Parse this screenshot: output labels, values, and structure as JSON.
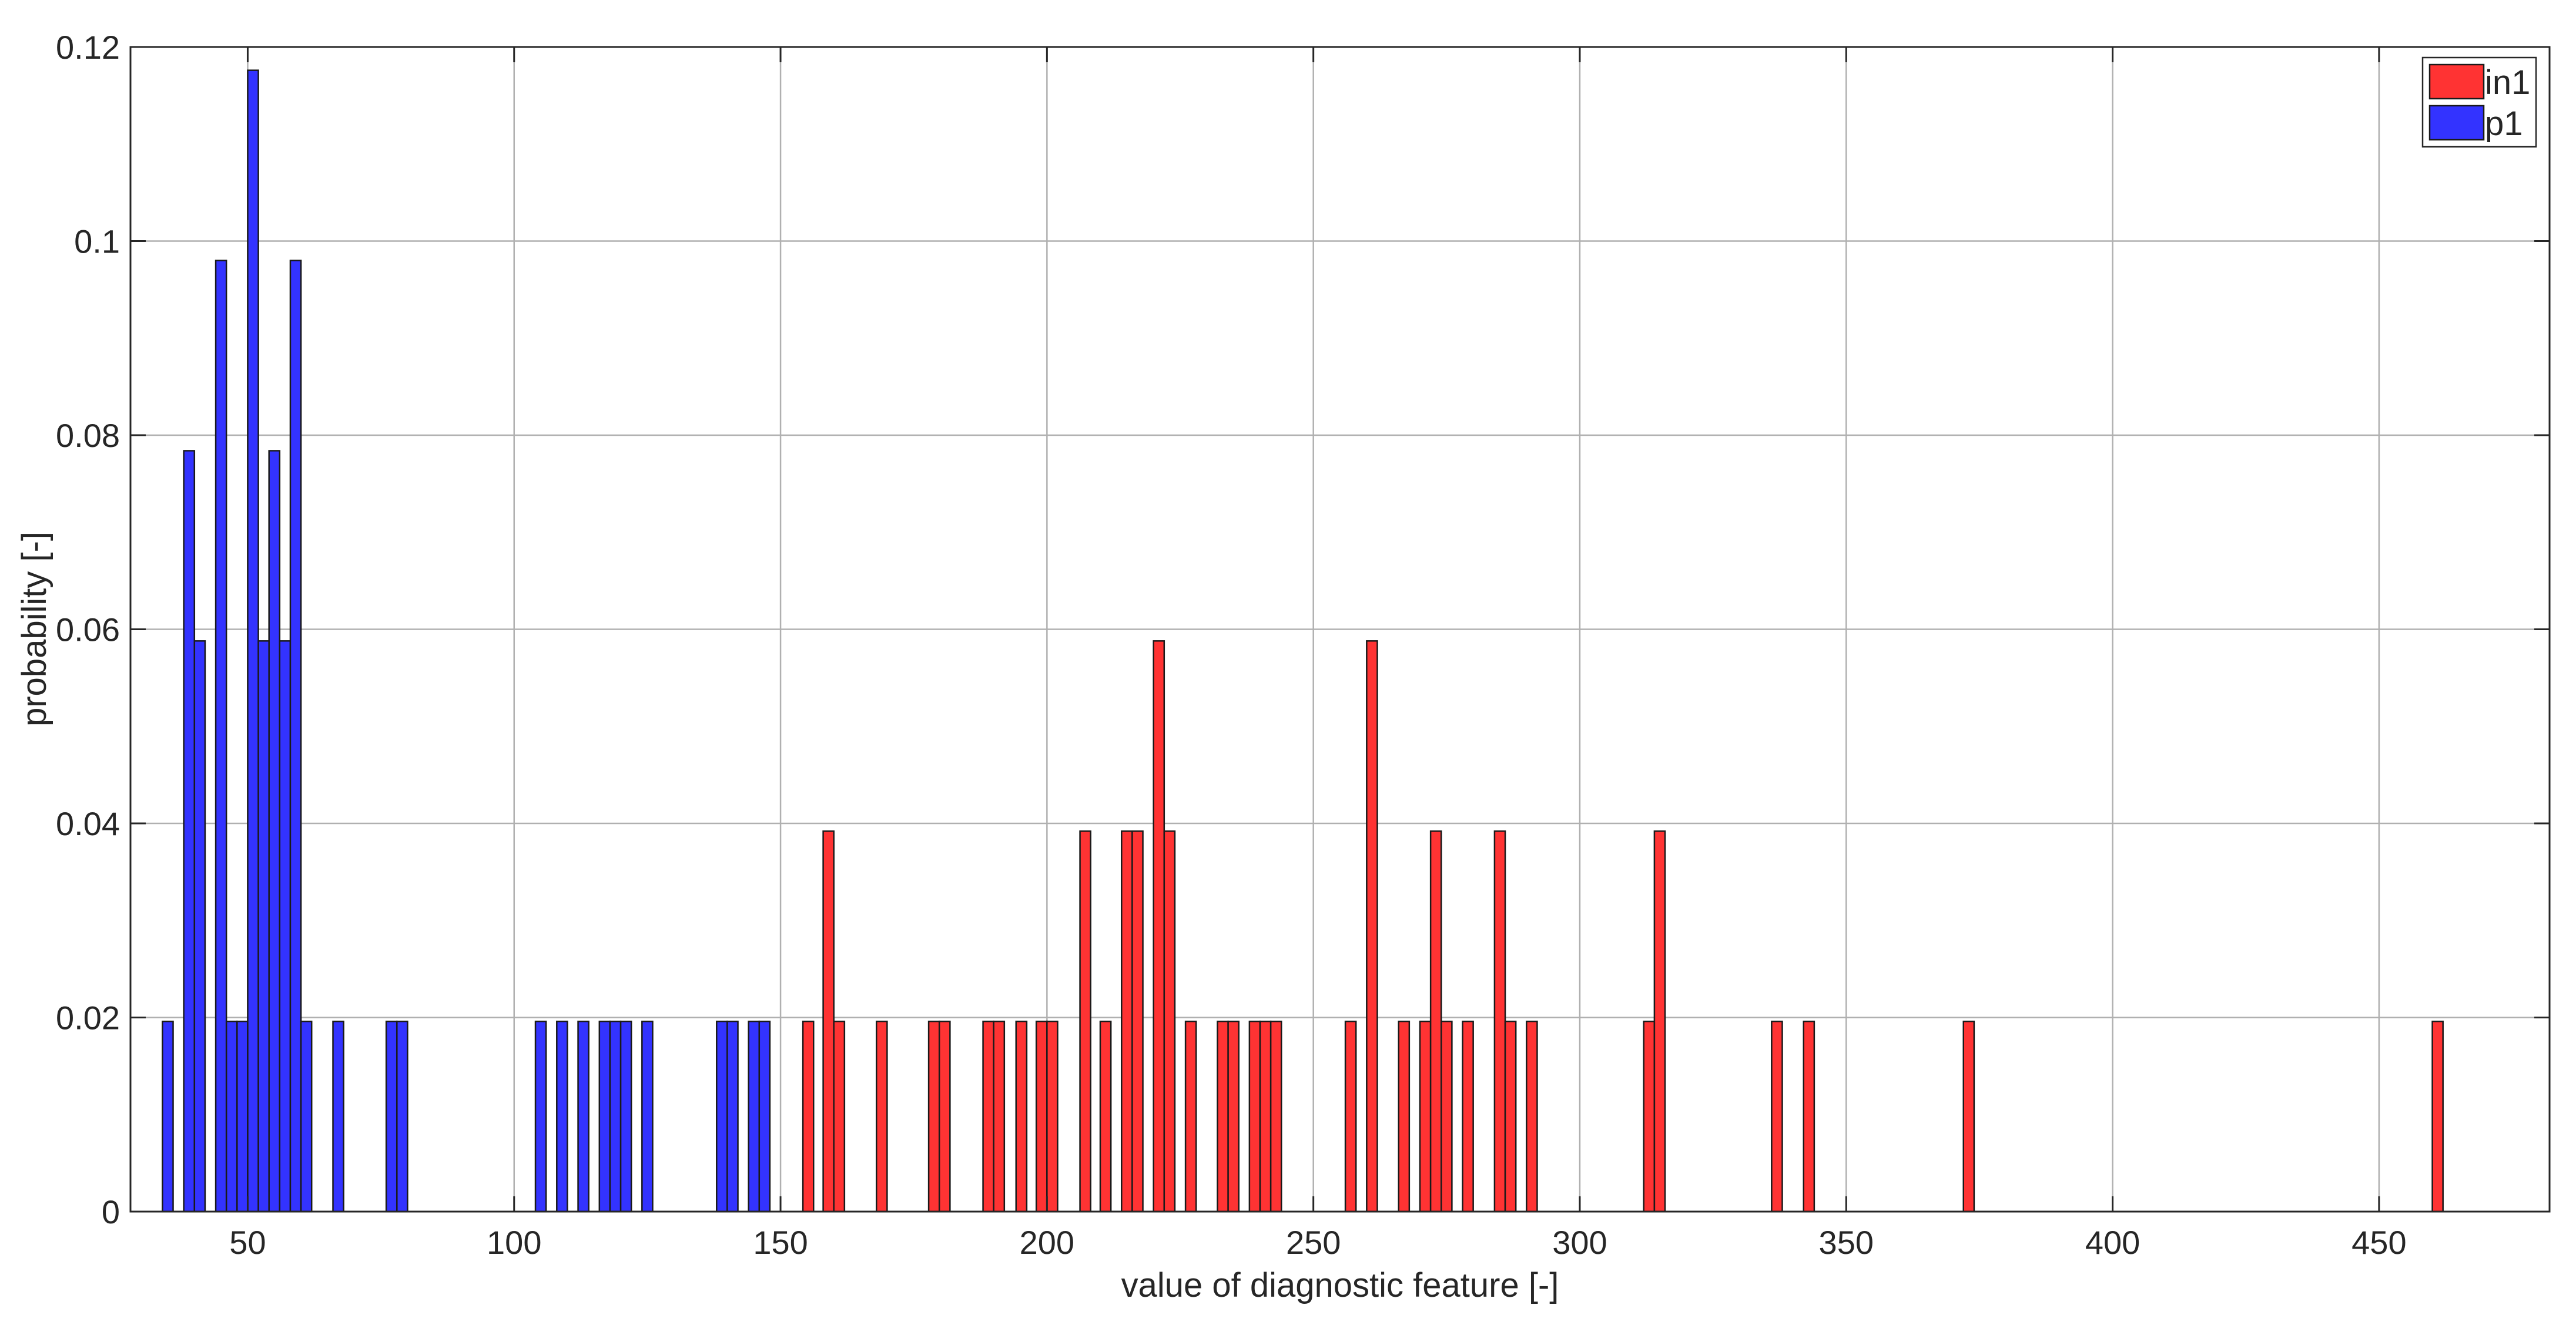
{
  "chart_data": {
    "type": "bar",
    "title": "",
    "xlabel": "value of diagnostic feature [-]",
    "ylabel": "probability [-]",
    "xlim": [
      28,
      482
    ],
    "ylim": [
      0,
      0.12
    ],
    "xticks": [
      50,
      100,
      150,
      200,
      250,
      300,
      350,
      400,
      450
    ],
    "yticks": [
      0,
      0.02,
      0.04,
      0.06,
      0.08,
      0.1,
      0.12
    ],
    "ytick_labels": [
      "0",
      "0.02",
      "0.04",
      "0.06",
      "0.08",
      "0.1",
      "0.12"
    ],
    "grid": true,
    "legend": {
      "position": "top-right"
    },
    "bar_width": 2.0,
    "series": [
      {
        "name": "in1",
        "color": "#ff3333",
        "points": [
          {
            "x": 155.2,
            "y": 0.0196
          },
          {
            "x": 159.0,
            "y": 0.0392
          },
          {
            "x": 161.0,
            "y": 0.0196
          },
          {
            "x": 169.0,
            "y": 0.0196
          },
          {
            "x": 178.8,
            "y": 0.0196
          },
          {
            "x": 180.8,
            "y": 0.0196
          },
          {
            "x": 189.0,
            "y": 0.0196
          },
          {
            "x": 191.0,
            "y": 0.0196
          },
          {
            "x": 195.2,
            "y": 0.0196
          },
          {
            "x": 199.0,
            "y": 0.0196
          },
          {
            "x": 201.0,
            "y": 0.0196
          },
          {
            "x": 207.2,
            "y": 0.0392
          },
          {
            "x": 211.0,
            "y": 0.0196
          },
          {
            "x": 215.0,
            "y": 0.0392
          },
          {
            "x": 217.0,
            "y": 0.0392
          },
          {
            "x": 221.0,
            "y": 0.0588
          },
          {
            "x": 223.0,
            "y": 0.0392
          },
          {
            "x": 227.0,
            "y": 0.0196
          },
          {
            "x": 233.0,
            "y": 0.0196
          },
          {
            "x": 235.0,
            "y": 0.0196
          },
          {
            "x": 239.0,
            "y": 0.0196
          },
          {
            "x": 241.0,
            "y": 0.0196
          },
          {
            "x": 243.0,
            "y": 0.0196
          },
          {
            "x": 257.0,
            "y": 0.0196
          },
          {
            "x": 261.0,
            "y": 0.0588
          },
          {
            "x": 267.0,
            "y": 0.0196
          },
          {
            "x": 271.0,
            "y": 0.0196
          },
          {
            "x": 273.0,
            "y": 0.0392
          },
          {
            "x": 275.0,
            "y": 0.0196
          },
          {
            "x": 279.0,
            "y": 0.0196
          },
          {
            "x": 285.0,
            "y": 0.0392
          },
          {
            "x": 287.0,
            "y": 0.0196
          },
          {
            "x": 291.0,
            "y": 0.0196
          },
          {
            "x": 313.0,
            "y": 0.0196
          },
          {
            "x": 315.0,
            "y": 0.0392
          },
          {
            "x": 337.0,
            "y": 0.0196
          },
          {
            "x": 343.0,
            "y": 0.0196
          },
          {
            "x": 373.0,
            "y": 0.0196
          },
          {
            "x": 461.0,
            "y": 0.0196
          }
        ]
      },
      {
        "name": "p1",
        "color": "#3333ff",
        "points": [
          {
            "x": 35.0,
            "y": 0.0196
          },
          {
            "x": 39.0,
            "y": 0.0784
          },
          {
            "x": 41.0,
            "y": 0.0588
          },
          {
            "x": 45.0,
            "y": 0.098
          },
          {
            "x": 47.0,
            "y": 0.0196
          },
          {
            "x": 49.0,
            "y": 0.0196
          },
          {
            "x": 51.0,
            "y": 0.1176
          },
          {
            "x": 53.0,
            "y": 0.0588
          },
          {
            "x": 55.0,
            "y": 0.0784
          },
          {
            "x": 57.0,
            "y": 0.0588
          },
          {
            "x": 59.0,
            "y": 0.098
          },
          {
            "x": 61.0,
            "y": 0.0196
          },
          {
            "x": 67.0,
            "y": 0.0196
          },
          {
            "x": 77.0,
            "y": 0.0196
          },
          {
            "x": 79.0,
            "y": 0.0196
          },
          {
            "x": 105.0,
            "y": 0.0196
          },
          {
            "x": 109.0,
            "y": 0.0196
          },
          {
            "x": 113.0,
            "y": 0.0196
          },
          {
            "x": 117.0,
            "y": 0.0196
          },
          {
            "x": 119.0,
            "y": 0.0196
          },
          {
            "x": 121.0,
            "y": 0.0196
          },
          {
            "x": 125.0,
            "y": 0.0196
          },
          {
            "x": 139.0,
            "y": 0.0196
          },
          {
            "x": 141.0,
            "y": 0.0196
          },
          {
            "x": 145.0,
            "y": 0.0196
          },
          {
            "x": 147.0,
            "y": 0.0196
          }
        ]
      }
    ]
  }
}
